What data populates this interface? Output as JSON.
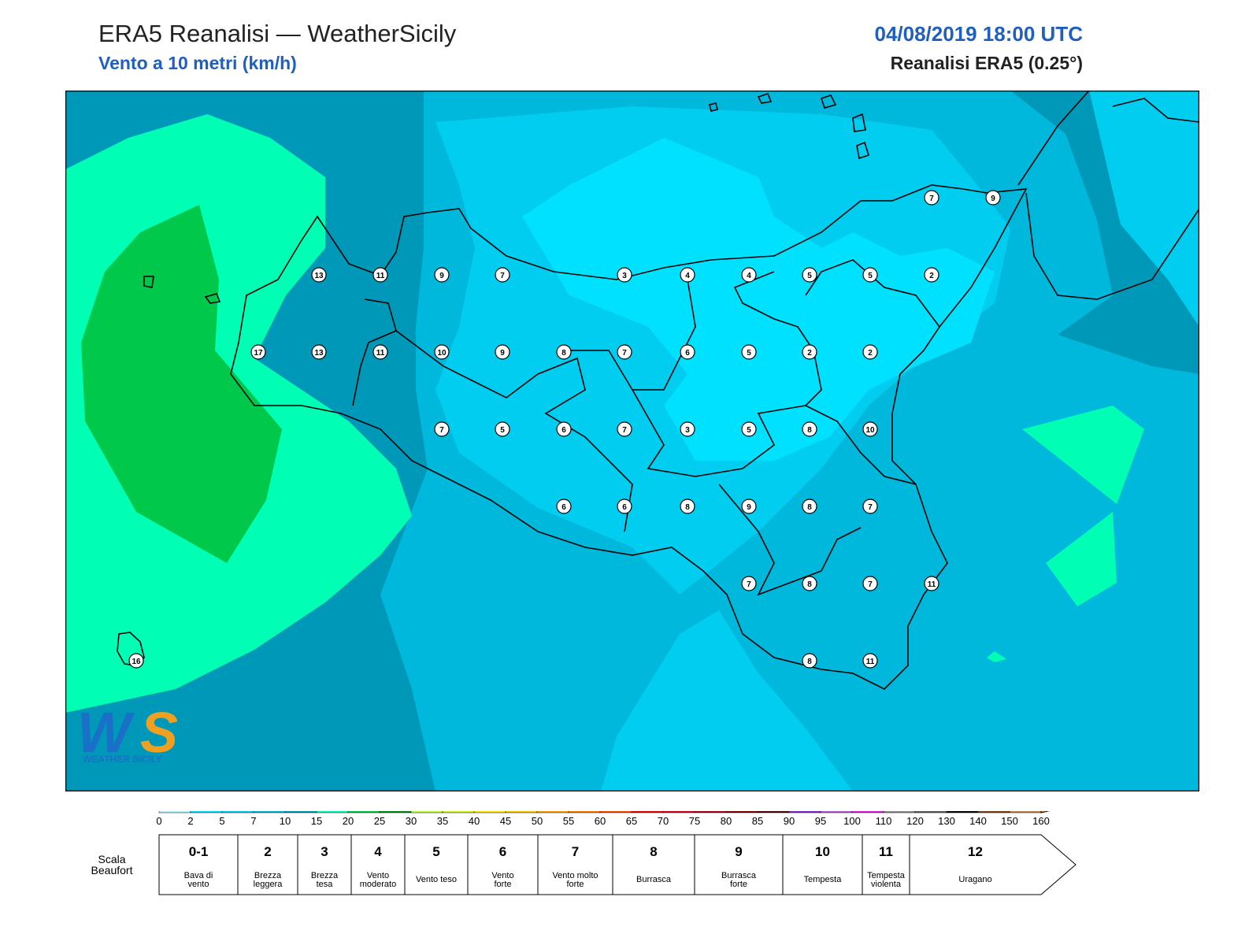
{
  "header": {
    "title": "ERA5 Reanalisi — WeatherSicily",
    "subtitle": "Vento a 10 metri (km/h)",
    "datetime": "04/08/2019 18:00 UTC",
    "source": "Reanalisi ERA5 (0.25°)"
  },
  "logo": {
    "text": "WEATHER SICILY"
  },
  "wind_points": [
    {
      "v": "13"
    },
    {
      "v": "11"
    },
    {
      "v": "9"
    },
    {
      "v": "7"
    },
    {
      "v": "3"
    },
    {
      "v": "4"
    },
    {
      "v": "4"
    },
    {
      "v": "5"
    },
    {
      "v": "5"
    },
    {
      "v": "2"
    },
    {
      "v": "7"
    },
    {
      "v": "9"
    },
    {
      "v": "17"
    },
    {
      "v": "13"
    },
    {
      "v": "11"
    },
    {
      "v": "10"
    },
    {
      "v": "9"
    },
    {
      "v": "8"
    },
    {
      "v": "7"
    },
    {
      "v": "6"
    },
    {
      "v": "5"
    },
    {
      "v": "2"
    },
    {
      "v": "2"
    },
    {
      "v": "7"
    },
    {
      "v": "5"
    },
    {
      "v": "6"
    },
    {
      "v": "7"
    },
    {
      "v": "3"
    },
    {
      "v": "5"
    },
    {
      "v": "8"
    },
    {
      "v": "10"
    },
    {
      "v": "6"
    },
    {
      "v": "6"
    },
    {
      "v": "8"
    },
    {
      "v": "9"
    },
    {
      "v": "8"
    },
    {
      "v": "7"
    },
    {
      "v": "7"
    },
    {
      "v": "8"
    },
    {
      "v": "7"
    },
    {
      "v": "11"
    },
    {
      "v": "8"
    },
    {
      "v": "11"
    },
    {
      "v": "16"
    }
  ],
  "colorbar": {
    "ticks": [
      "0",
      "2",
      "5",
      "7",
      "10",
      "15",
      "20",
      "25",
      "30",
      "35",
      "40",
      "45",
      "50",
      "55",
      "60",
      "65",
      "70",
      "75",
      "80",
      "85",
      "90",
      "95",
      "100",
      "110",
      "120",
      "130",
      "140",
      "150",
      "160"
    ],
    "colors": [
      "#b3f5ff",
      "#00e1ff",
      "#00cdf0",
      "#00b8dc",
      "#0098b8",
      "#00ffb4",
      "#00c84a",
      "#008a1e",
      "#bfff3a",
      "#d8f51a",
      "#ffe800",
      "#ffc800",
      "#ffa000",
      "#ff7800",
      "#ff4b00",
      "#f00000",
      "#d4001e",
      "#a8001a",
      "#7d0000",
      "#500000",
      "#7a28d2",
      "#b45ad2",
      "#e01ee0",
      "#8c8c8c",
      "#5a5a5a",
      "#000000",
      "#7a3d1e",
      "#c8824b",
      "#d48c4b"
    ]
  },
  "beaufort": {
    "label": "Scala\nBeaufort",
    "label_line1": "Scala",
    "label_line2": "Beaufort",
    "classes": [
      {
        "n": "0-1",
        "desc1": "Bava di",
        "desc2": "vento"
      },
      {
        "n": "2",
        "desc1": "Brezza",
        "desc2": "leggera"
      },
      {
        "n": "3",
        "desc1": "Brezza",
        "desc2": "tesa"
      },
      {
        "n": "4",
        "desc1": "Vento",
        "desc2": "moderato"
      },
      {
        "n": "5",
        "desc1": "Vento teso",
        "desc2": ""
      },
      {
        "n": "6",
        "desc1": "Vento",
        "desc2": "forte"
      },
      {
        "n": "7",
        "desc1": "Vento molto",
        "desc2": "forte"
      },
      {
        "n": "8",
        "desc1": "Burrasca",
        "desc2": ""
      },
      {
        "n": "9",
        "desc1": "Burrasca",
        "desc2": "forte"
      },
      {
        "n": "10",
        "desc1": "Tempesta",
        "desc2": ""
      },
      {
        "n": "11",
        "desc1": "Tempesta",
        "desc2": "violenta"
      },
      {
        "n": "12",
        "desc1": "Uragano",
        "desc2": ""
      }
    ]
  }
}
